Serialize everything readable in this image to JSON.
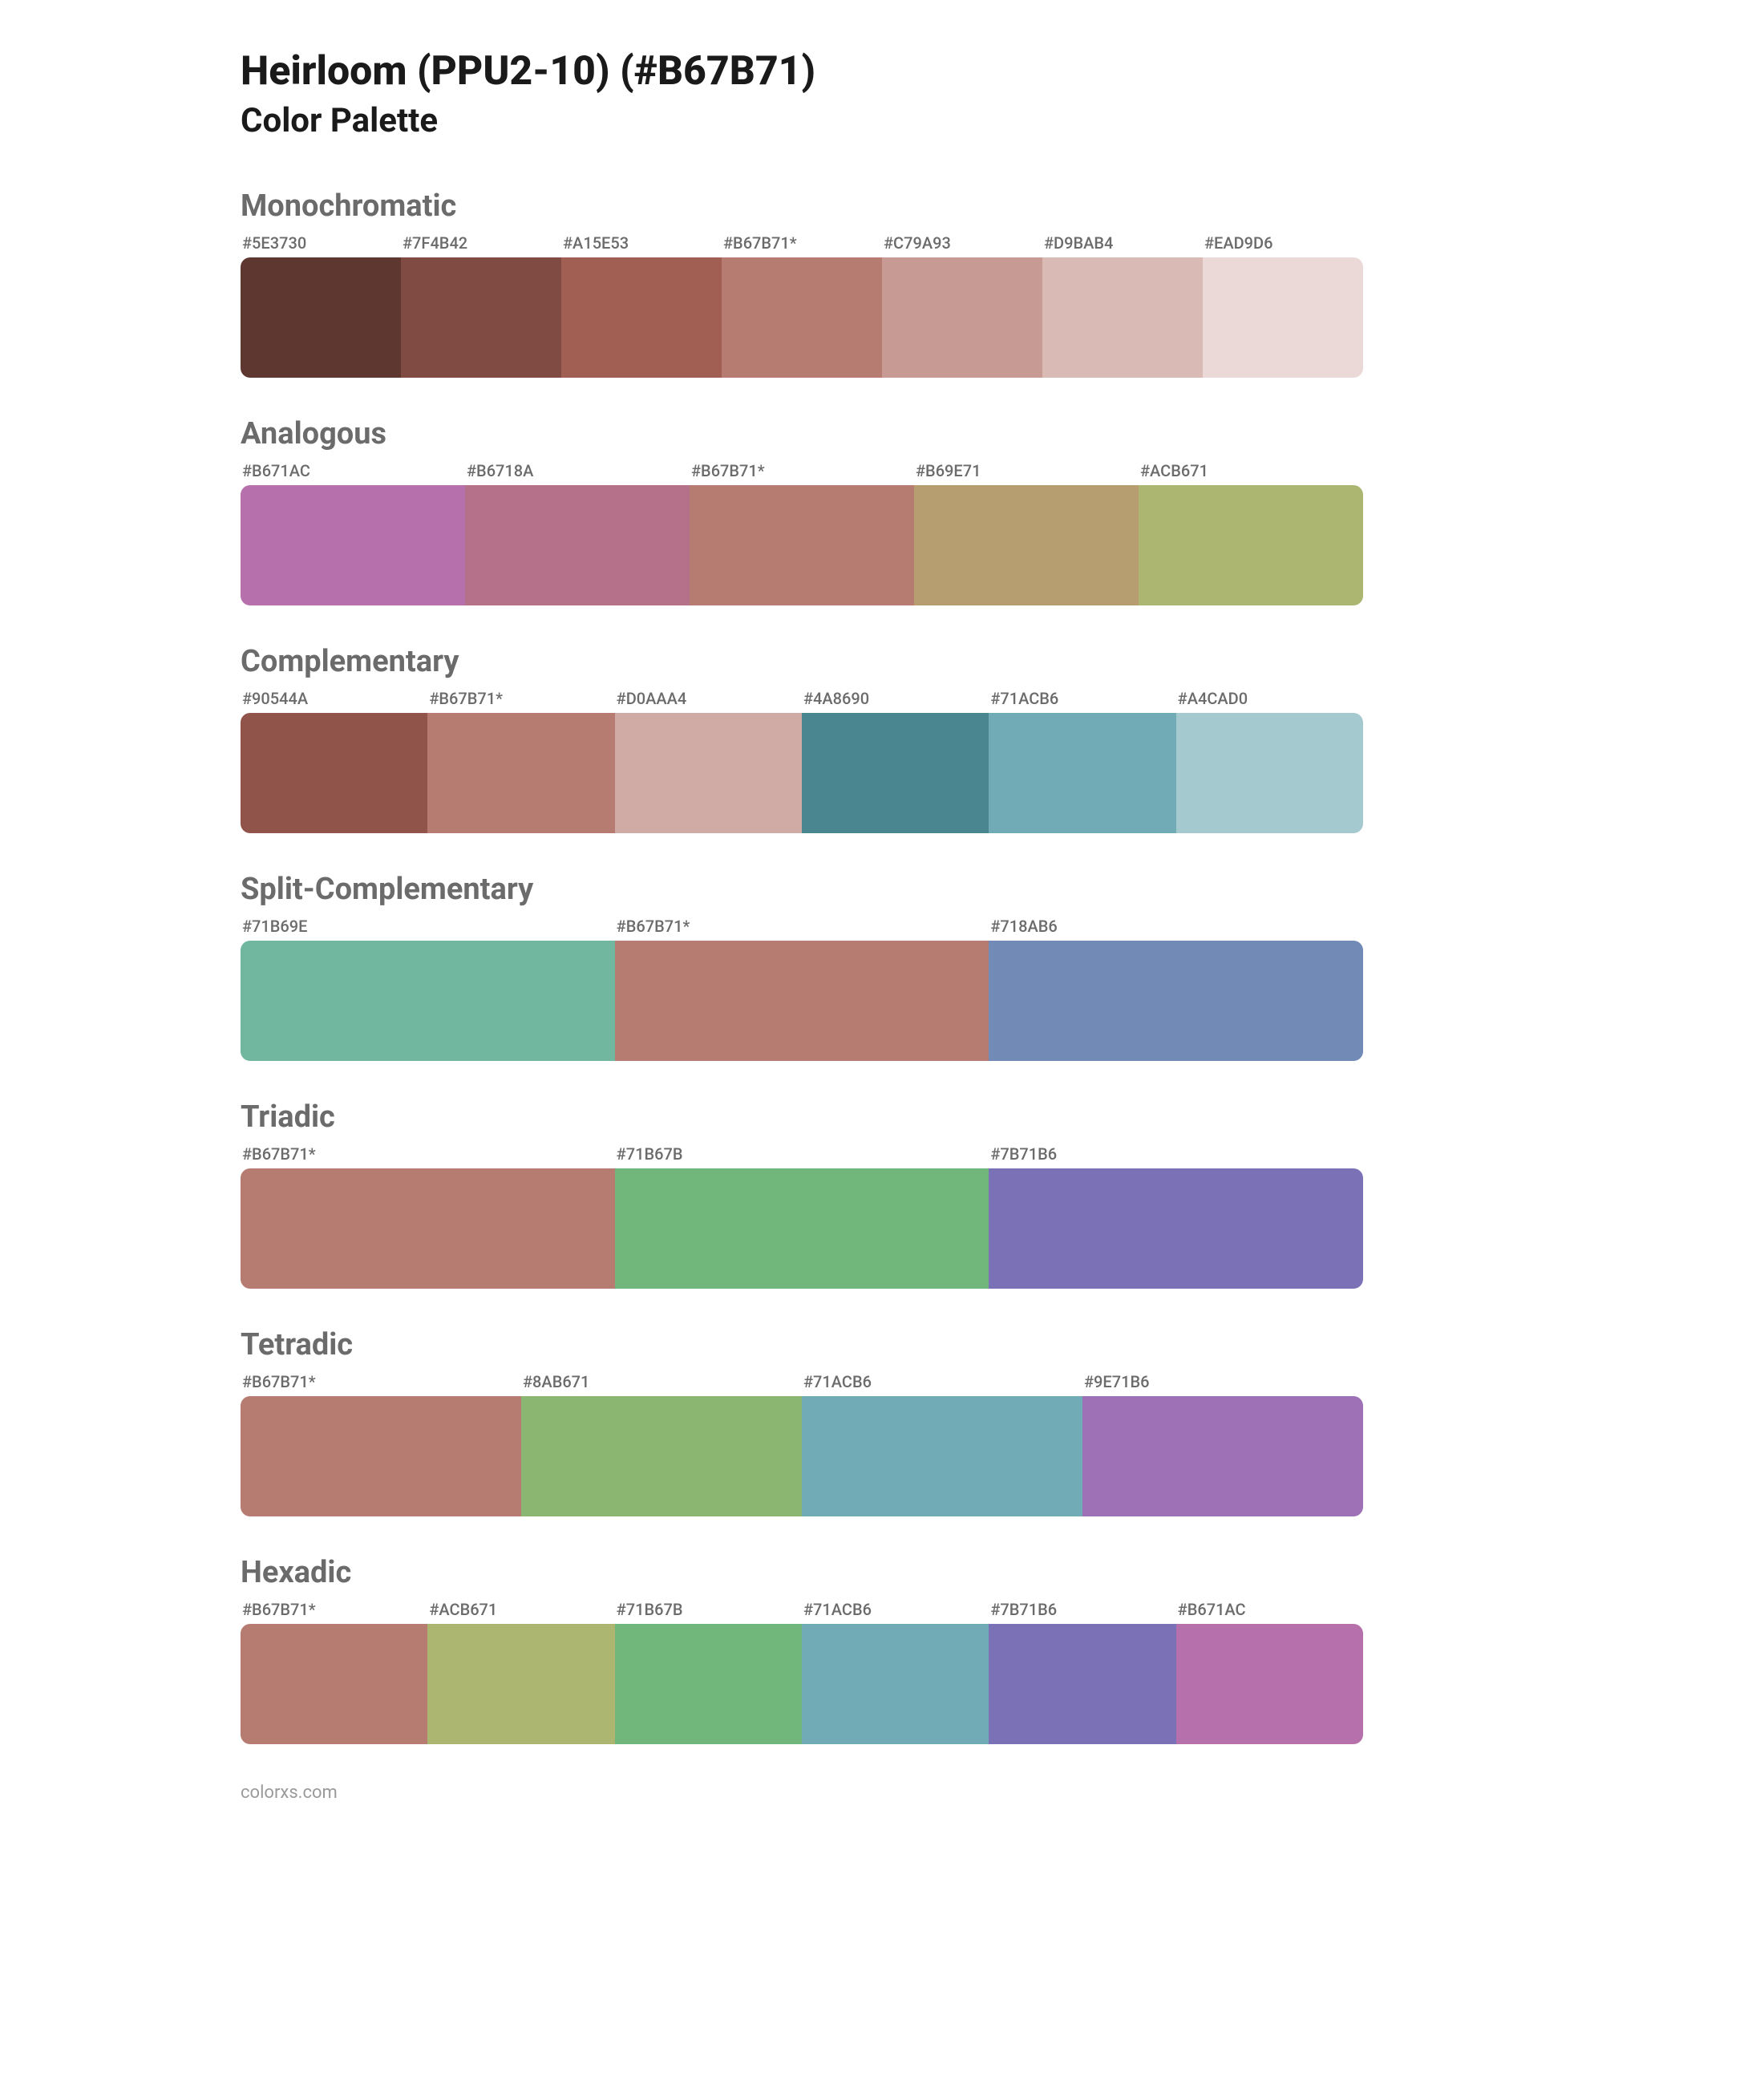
{
  "title": "Heirloom (PPU2-10) (#B67B71)",
  "subtitle": "Color Palette",
  "footer": "colorxs.com",
  "label_color": "#6b6b6b",
  "title_color": "#1a1a1a",
  "background_color": "#ffffff",
  "swatch_height": 150,
  "border_radius": 12,
  "row_width": 1400,
  "palettes": [
    {
      "name": "Monochromatic",
      "swatches": [
        {
          "label": "#5E3730",
          "hex": "#5E3730"
        },
        {
          "label": "#7F4B42",
          "hex": "#7F4B42"
        },
        {
          "label": "#A15E53",
          "hex": "#A15E53"
        },
        {
          "label": "#B67B71*",
          "hex": "#B67B71"
        },
        {
          "label": "#C79A93",
          "hex": "#C79A93"
        },
        {
          "label": "#D9BAB4",
          "hex": "#D9BAB4"
        },
        {
          "label": "#EAD9D6",
          "hex": "#EAD9D6"
        }
      ]
    },
    {
      "name": "Analogous",
      "swatches": [
        {
          "label": "#B671AC",
          "hex": "#B671AC"
        },
        {
          "label": "#B6718A",
          "hex": "#B6718A"
        },
        {
          "label": "#B67B71*",
          "hex": "#B67B71"
        },
        {
          "label": "#B69E71",
          "hex": "#B69E71"
        },
        {
          "label": "#ACB671",
          "hex": "#ACB671"
        }
      ]
    },
    {
      "name": "Complementary",
      "swatches": [
        {
          "label": "#90544A",
          "hex": "#90544A"
        },
        {
          "label": "#B67B71*",
          "hex": "#B67B71"
        },
        {
          "label": "#D0AAA4",
          "hex": "#D0AAA4"
        },
        {
          "label": "#4A8690",
          "hex": "#4A8690"
        },
        {
          "label": "#71ACB6",
          "hex": "#71ACB6"
        },
        {
          "label": "#A4CAD0",
          "hex": "#A4CAD0"
        }
      ]
    },
    {
      "name": "Split-Complementary",
      "swatches": [
        {
          "label": "#71B69E",
          "hex": "#71B69E"
        },
        {
          "label": "#B67B71*",
          "hex": "#B67B71"
        },
        {
          "label": "#718AB6",
          "hex": "#718AB6"
        }
      ]
    },
    {
      "name": "Triadic",
      "swatches": [
        {
          "label": "#B67B71*",
          "hex": "#B67B71"
        },
        {
          "label": "#71B67B",
          "hex": "#71B67B"
        },
        {
          "label": "#7B71B6",
          "hex": "#7B71B6"
        }
      ]
    },
    {
      "name": "Tetradic",
      "swatches": [
        {
          "label": "#B67B71*",
          "hex": "#B67B71"
        },
        {
          "label": "#8AB671",
          "hex": "#8AB671"
        },
        {
          "label": "#71ACB6",
          "hex": "#71ACB6"
        },
        {
          "label": "#9E71B6",
          "hex": "#9E71B6"
        }
      ]
    },
    {
      "name": "Hexadic",
      "swatches": [
        {
          "label": "#B67B71*",
          "hex": "#B67B71"
        },
        {
          "label": "#ACB671",
          "hex": "#ACB671"
        },
        {
          "label": "#71B67B",
          "hex": "#71B67B"
        },
        {
          "label": "#71ACB6",
          "hex": "#71ACB6"
        },
        {
          "label": "#7B71B6",
          "hex": "#7B71B6"
        },
        {
          "label": "#B671AC",
          "hex": "#B671AC"
        }
      ]
    }
  ]
}
